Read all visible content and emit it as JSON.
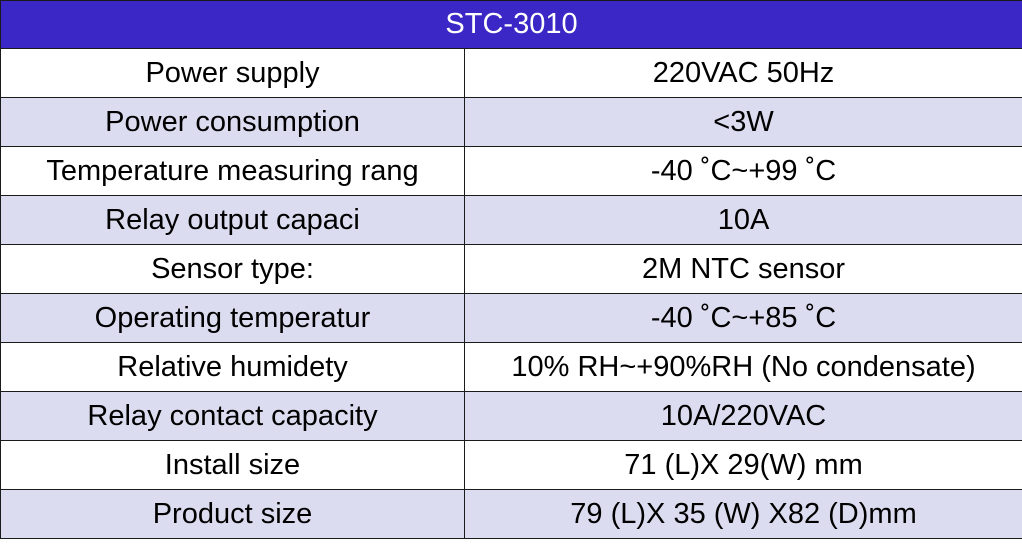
{
  "table": {
    "title": "STC-3010",
    "rows": [
      {
        "label": "Power supply",
        "value": "220VAC  50Hz"
      },
      {
        "label": "Power consumption",
        "value": "<3W"
      },
      {
        "label": "Temperature measuring rang",
        "value": "-40 ˚C~+99 ˚C"
      },
      {
        "label": "Relay output capaci",
        "value": "10A"
      },
      {
        "label": "Sensor type:",
        "value": "2M  NTC  sensor"
      },
      {
        "label": "Operating temperatur",
        "value": "-40 ˚C~+85 ˚C"
      },
      {
        "label": "Relative humidety",
        "value": "10% RH~+90%RH (No condensate)"
      },
      {
        "label": "Relay contact capacity",
        "value": "10A/220VAC"
      },
      {
        "label": "Install size",
        "value": "71 (L)X 29(W) mm"
      },
      {
        "label": "Product size",
        "value": "79 (L)X 35 (W) X82 (D)mm"
      }
    ]
  },
  "colors": {
    "header_bg": "#3b27c6",
    "header_text": "#ffffff",
    "row_odd_bg": "#ffffff",
    "row_even_bg": "#dcdcf0",
    "border": "#1a1a1a"
  }
}
